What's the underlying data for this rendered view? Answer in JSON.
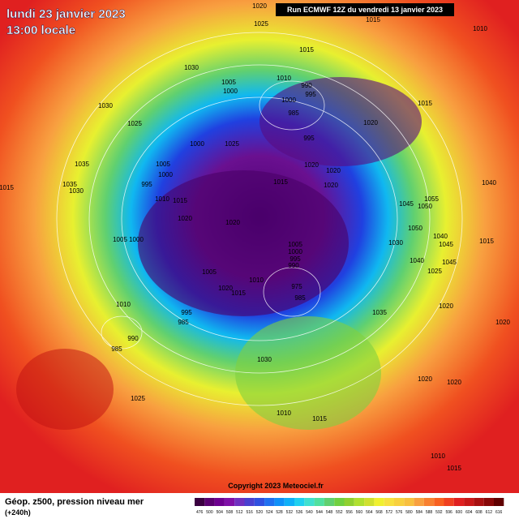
{
  "header": {
    "date": "lundi 23 janvier 2023",
    "time": "13:00 locale",
    "run": "Run ECMWF 12Z du vendredi 13 janvier 2023"
  },
  "map": {
    "isobar_labels": [
      1020,
      1025,
      1015,
      1010,
      1015,
      1030,
      1010,
      990,
      1005,
      1000,
      995,
      1000,
      1015,
      1030,
      985,
      1020,
      1025,
      995,
      1000,
      1025,
      1035,
      1005,
      1020,
      1020,
      1000,
      1015,
      1020,
      1040,
      1015,
      1035,
      1030,
      995,
      1010,
      1015,
      1045,
      1055,
      1050,
      1020,
      1020,
      1005,
      1000,
      1050,
      1040,
      1045,
      1015,
      1005,
      1000,
      995,
      990,
      1030,
      1040,
      1025,
      1045,
      1010,
      1005,
      1020,
      1015,
      975,
      985,
      1010,
      995,
      985,
      990,
      985,
      1035,
      1020,
      1030,
      1025,
      1020,
      1020,
      1015,
      1010,
      1010,
      1015,
      1020
    ]
  },
  "footer": {
    "copyright": "Copyright 2023 Meteociel.fr",
    "legend_title": "Géop. z500, pression niveau mer",
    "lead": "(+240h)",
    "scale": {
      "values": [
        476,
        500,
        504,
        508,
        512,
        516,
        520,
        524,
        528,
        532,
        536,
        540,
        544,
        548,
        552,
        556,
        560,
        564,
        568,
        572,
        576,
        580,
        584,
        588,
        592,
        596,
        600,
        604,
        608,
        612,
        616
      ],
      "colors": [
        "#3a0040",
        "#5a0070",
        "#6e0090",
        "#8010a8",
        "#7030c0",
        "#4a40d0",
        "#3050e0",
        "#2070f0",
        "#1090f8",
        "#10b0f8",
        "#20d0f0",
        "#40e0d0",
        "#50e0a0",
        "#60d070",
        "#70d040",
        "#90d030",
        "#b0e030",
        "#d0e030",
        "#f0f030",
        "#f8e040",
        "#f8d040",
        "#f8c040",
        "#f8a040",
        "#f88030",
        "#f86020",
        "#f04020",
        "#e02020",
        "#c81818",
        "#a81010",
        "#880808",
        "#600000"
      ]
    }
  }
}
